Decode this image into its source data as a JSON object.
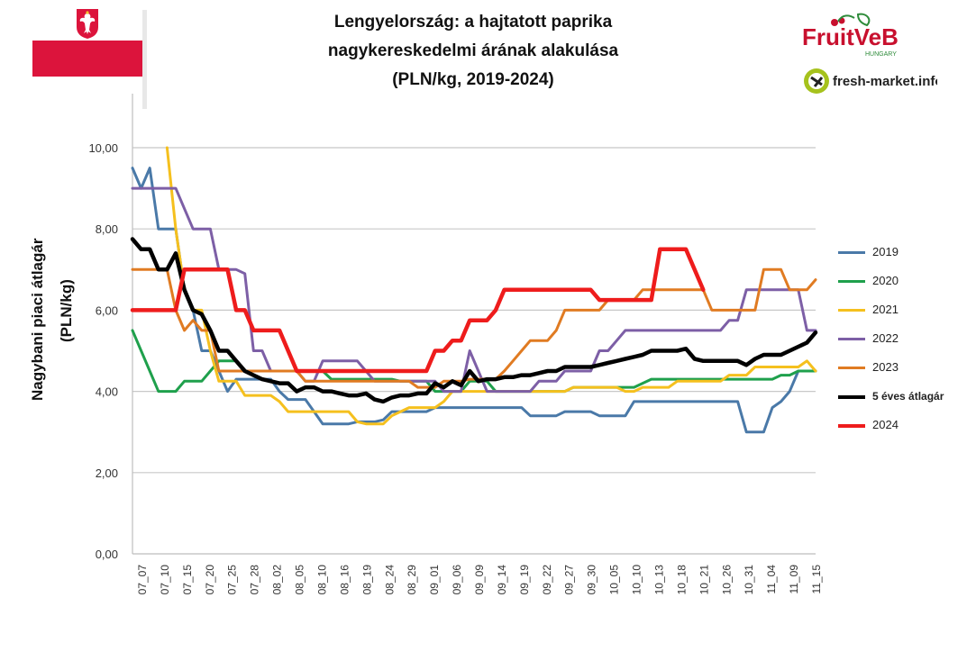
{
  "title_lines": [
    "Lengyelország: a hajtatott paprika",
    "nagykereskedelmi árának alakulása",
    "(PLN/kg, 2019-2024)"
  ],
  "logos": {
    "fruitveb": "FruitVeB",
    "fruitveb_sub": "HUNGARY",
    "freshmarket": "fresh-market.info"
  },
  "chart_data": {
    "type": "line",
    "ylabel_lines": [
      "Nagybani piaci átlagár",
      "(PLN/kg)"
    ],
    "ylim": [
      0,
      10
    ],
    "y_ticks": [
      "0,00",
      "2,00",
      "4,00",
      "6,00",
      "8,00",
      "10,00"
    ],
    "grid": true,
    "legend_position": "right",
    "x_labels": [
      "07_07",
      "07_10",
      "07_15",
      "07_20",
      "07_25",
      "07_28",
      "08_02",
      "08_05",
      "08_10",
      "08_16",
      "08_19",
      "08_24",
      "08_29",
      "09_01",
      "09_06",
      "09_09",
      "09_14",
      "09_19",
      "09_22",
      "09_27",
      "09_30",
      "10_05",
      "10_10",
      "10_13",
      "10_18",
      "10_21",
      "10_26",
      "10_31",
      "11_04",
      "11_09",
      "11_15"
    ],
    "series": [
      {
        "name": "2019",
        "color": "#4a79a8",
        "width": 3,
        "values": [
          9.5,
          9.0,
          9.5,
          8.0,
          8.0,
          8.0,
          6.5,
          6.0,
          5.0,
          5.0,
          4.5,
          4.0,
          4.3,
          4.3,
          4.3,
          4.3,
          4.3,
          4.0,
          3.8,
          3.8,
          3.8,
          3.5,
          3.2,
          3.2,
          3.2,
          3.2,
          3.25,
          3.25,
          3.25,
          3.3,
          3.5,
          3.5,
          3.5,
          3.5,
          3.5,
          3.6,
          3.6,
          3.6,
          3.6,
          3.6,
          3.6,
          3.6,
          3.6,
          3.6,
          3.6,
          3.6,
          3.4,
          3.4,
          3.4,
          3.4,
          3.5,
          3.5,
          3.5,
          3.5,
          3.4,
          3.4,
          3.4,
          3.4,
          3.75,
          3.75,
          3.75,
          3.75,
          3.75,
          3.75,
          3.75,
          3.75,
          3.75,
          3.75,
          3.75,
          3.75,
          3.75,
          3.0,
          3.0,
          3.0,
          3.6,
          3.75,
          4.0,
          4.5,
          4.5,
          4.5
        ]
      },
      {
        "name": "2020",
        "color": "#1fa04c",
        "width": 3,
        "values": [
          5.5,
          5.0,
          4.5,
          4.0,
          4.0,
          4.0,
          4.25,
          4.25,
          4.25,
          4.5,
          4.75,
          4.75,
          4.75,
          4.5,
          4.5,
          4.5,
          4.5,
          4.5,
          4.5,
          4.5,
          4.5,
          4.5,
          4.5,
          4.3,
          4.3,
          4.3,
          4.3,
          4.3,
          4.3,
          4.3,
          4.3,
          4.25,
          4.25,
          4.25,
          4.25,
          4.0,
          4.0,
          4.0,
          4.0,
          4.25,
          4.25,
          4.25,
          4.0,
          4.0,
          4.0,
          4.0,
          4.0,
          4.0,
          4.0,
          4.0,
          4.0,
          4.1,
          4.1,
          4.1,
          4.1,
          4.1,
          4.1,
          4.1,
          4.1,
          4.2,
          4.3,
          4.3,
          4.3,
          4.3,
          4.3,
          4.3,
          4.3,
          4.3,
          4.3,
          4.3,
          4.3,
          4.3,
          4.3,
          4.3,
          4.3,
          4.4,
          4.4,
          4.5,
          4.5,
          4.5
        ]
      },
      {
        "name": "2021",
        "color": "#f5c01e",
        "width": 3,
        "values": [
          null,
          null,
          null,
          null,
          10.0,
          8.0,
          6.5,
          6.0,
          6.0,
          5.0,
          4.25,
          4.25,
          4.25,
          3.9,
          3.9,
          3.9,
          3.9,
          3.75,
          3.5,
          3.5,
          3.5,
          3.5,
          3.5,
          3.5,
          3.5,
          3.5,
          3.25,
          3.2,
          3.2,
          3.2,
          3.4,
          3.5,
          3.6,
          3.6,
          3.6,
          3.6,
          3.75,
          4.0,
          4.0,
          4.0,
          4.0,
          4.0,
          4.0,
          4.0,
          4.0,
          4.0,
          4.0,
          4.0,
          4.0,
          4.0,
          4.0,
          4.1,
          4.1,
          4.1,
          4.1,
          4.1,
          4.1,
          4.0,
          4.0,
          4.1,
          4.1,
          4.1,
          4.1,
          4.25,
          4.25,
          4.25,
          4.25,
          4.25,
          4.25,
          4.4,
          4.4,
          4.4,
          4.6,
          4.6,
          4.6,
          4.6,
          4.6,
          4.6,
          4.75,
          4.5
        ]
      },
      {
        "name": "2022",
        "color": "#7d5fa6",
        "width": 3,
        "values": [
          9.0,
          9.0,
          9.0,
          9.0,
          9.0,
          9.0,
          8.5,
          8.0,
          8.0,
          8.0,
          7.0,
          7.0,
          7.0,
          6.9,
          5.0,
          5.0,
          4.5,
          4.5,
          4.5,
          4.5,
          4.25,
          4.25,
          4.75,
          4.75,
          4.75,
          4.75,
          4.75,
          4.5,
          4.25,
          4.25,
          4.25,
          4.25,
          4.25,
          4.25,
          4.25,
          4.25,
          4.0,
          4.0,
          4.0,
          5.0,
          4.5,
          4.0,
          4.0,
          4.0,
          4.0,
          4.0,
          4.0,
          4.25,
          4.25,
          4.25,
          4.5,
          4.5,
          4.5,
          4.5,
          5.0,
          5.0,
          5.25,
          5.5,
          5.5,
          5.5,
          5.5,
          5.5,
          5.5,
          5.5,
          5.5,
          5.5,
          5.5,
          5.5,
          5.5,
          5.75,
          5.75,
          6.5,
          6.5,
          6.5,
          6.5,
          6.5,
          6.5,
          6.5,
          5.5,
          5.5
        ]
      },
      {
        "name": "2023",
        "color": "#e07b22",
        "width": 3,
        "values": [
          7.0,
          7.0,
          7.0,
          7.0,
          7.0,
          6.0,
          5.5,
          5.75,
          5.5,
          5.5,
          4.5,
          4.5,
          4.5,
          4.5,
          4.5,
          4.5,
          4.5,
          4.5,
          4.5,
          4.5,
          4.25,
          4.25,
          4.25,
          4.25,
          4.25,
          4.25,
          4.25,
          4.25,
          4.25,
          4.25,
          4.25,
          4.25,
          4.25,
          4.1,
          4.1,
          4.1,
          4.25,
          4.25,
          4.25,
          4.3,
          4.3,
          4.3,
          4.3,
          4.5,
          4.75,
          5.0,
          5.25,
          5.25,
          5.25,
          5.5,
          6.0,
          6.0,
          6.0,
          6.0,
          6.0,
          6.25,
          6.25,
          6.25,
          6.25,
          6.5,
          6.5,
          6.5,
          6.5,
          6.5,
          6.5,
          6.5,
          6.5,
          6.0,
          6.0,
          6.0,
          6.0,
          6.0,
          6.0,
          7.0,
          7.0,
          7.0,
          6.5,
          6.5,
          6.5,
          6.75
        ]
      },
      {
        "name": "5 éves átlagár",
        "color": "#000000",
        "width": 4.5,
        "values": [
          7.75,
          7.5,
          7.5,
          7.0,
          7.0,
          7.4,
          6.5,
          6.0,
          5.9,
          5.5,
          5.0,
          5.0,
          4.75,
          4.5,
          4.4,
          4.3,
          4.25,
          4.2,
          4.2,
          4.0,
          4.1,
          4.1,
          4.0,
          4.0,
          3.95,
          3.9,
          3.9,
          3.95,
          3.8,
          3.75,
          3.85,
          3.9,
          3.9,
          3.95,
          3.95,
          4.2,
          4.1,
          4.25,
          4.15,
          4.5,
          4.25,
          4.3,
          4.3,
          4.35,
          4.35,
          4.4,
          4.4,
          4.45,
          4.5,
          4.5,
          4.6,
          4.6,
          4.6,
          4.6,
          4.65,
          4.7,
          4.75,
          4.8,
          4.85,
          4.9,
          5.0,
          5.0,
          5.0,
          5.0,
          5.05,
          4.8,
          4.75,
          4.75,
          4.75,
          4.75,
          4.75,
          4.65,
          4.8,
          4.9,
          4.9,
          4.9,
          5.0,
          5.1,
          5.2,
          5.45
        ]
      },
      {
        "name": "2024",
        "color": "#ee1c1c",
        "width": 4.5,
        "values": [
          6.0,
          6.0,
          6.0,
          6.0,
          6.0,
          6.0,
          7.0,
          7.0,
          7.0,
          7.0,
          7.0,
          7.0,
          6.0,
          6.0,
          5.5,
          5.5,
          5.5,
          5.5,
          5.0,
          4.5,
          4.5,
          4.5,
          4.5,
          4.5,
          4.5,
          4.5,
          4.5,
          4.5,
          4.5,
          4.5,
          4.5,
          4.5,
          4.5,
          4.5,
          4.5,
          5.0,
          5.0,
          5.25,
          5.25,
          5.75,
          5.75,
          5.75,
          6.0,
          6.5,
          6.5,
          6.5,
          6.5,
          6.5,
          6.5,
          6.5,
          6.5,
          6.5,
          6.5,
          6.5,
          6.25,
          6.25,
          6.25,
          6.25,
          6.25,
          6.25,
          6.25,
          7.5,
          7.5,
          7.5,
          7.5,
          7.0,
          6.5,
          null,
          null,
          null,
          null,
          null,
          null,
          null,
          null,
          null,
          null,
          null,
          null,
          null
        ]
      }
    ]
  }
}
